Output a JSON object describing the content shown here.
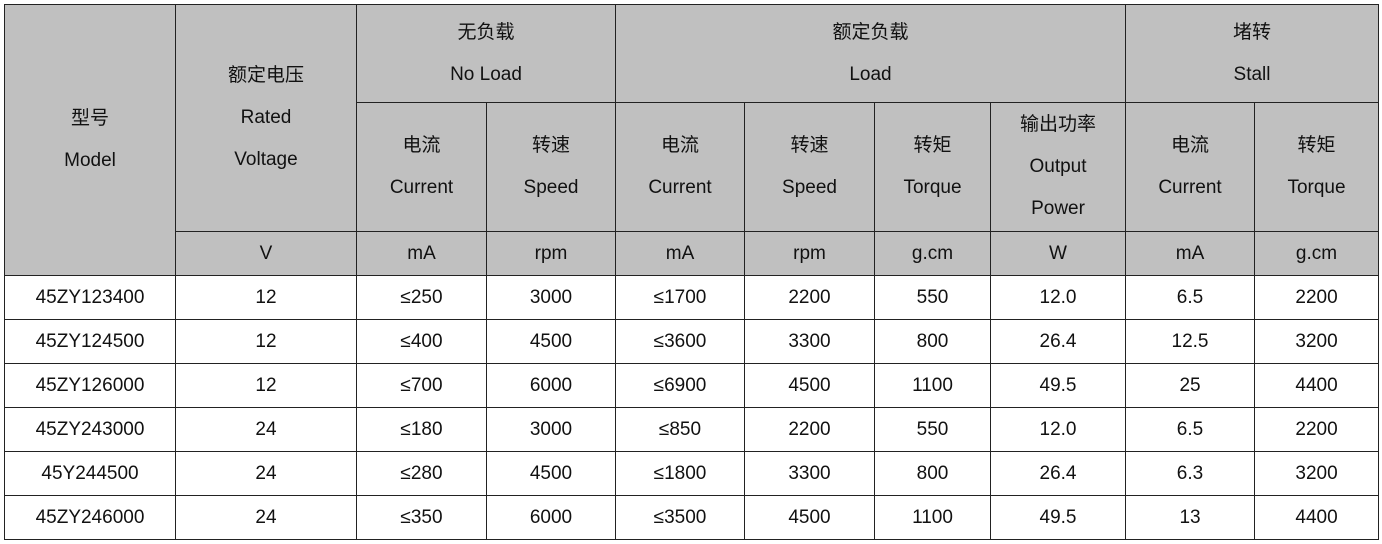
{
  "header": {
    "model": {
      "zh": "型号",
      "en": "Model"
    },
    "voltage": {
      "zh": "额定电压",
      "en1": "Rated",
      "en2": "Voltage",
      "unit": "V"
    },
    "no_load": {
      "zh": "无负载",
      "en": "No Load",
      "cols": [
        {
          "zh": "电流",
          "en": "Current",
          "unit": "mA"
        },
        {
          "zh": "转速",
          "en": "Speed",
          "unit": "rpm"
        }
      ]
    },
    "load": {
      "zh": "额定负载",
      "en": "Load",
      "cols": [
        {
          "zh": "电流",
          "en": "Current",
          "unit": "mA"
        },
        {
          "zh": "转速",
          "en": "Speed",
          "unit": "rpm"
        },
        {
          "zh": "转矩",
          "en": "Torque",
          "unit": "g.cm"
        },
        {
          "zh": "输出功率",
          "en1": "Output",
          "en2": "Power",
          "unit": "W"
        }
      ]
    },
    "stall": {
      "zh": "堵转",
      "en": "Stall",
      "cols": [
        {
          "zh": "电流",
          "en": "Current",
          "unit": "mA"
        },
        {
          "zh": "转矩",
          "en": "Torque",
          "unit": "g.cm"
        }
      ]
    }
  },
  "rows": [
    [
      "45ZY123400",
      "12",
      "≤250",
      "3000",
      "≤1700",
      "2200",
      "550",
      "12.0",
      "6.5",
      "2200"
    ],
    [
      "45ZY124500",
      "12",
      "≤400",
      "4500",
      "≤3600",
      "3300",
      "800",
      "26.4",
      "12.5",
      "3200"
    ],
    [
      "45ZY126000",
      "12",
      "≤700",
      "6000",
      "≤6900",
      "4500",
      "1100",
      "49.5",
      "25",
      "4400"
    ],
    [
      "45ZY243000",
      "24",
      "≤180",
      "3000",
      "≤850",
      "2200",
      "550",
      "12.0",
      "6.5",
      "2200"
    ],
    [
      "45Y244500",
      "24",
      "≤280",
      "4500",
      "≤1800",
      "3300",
      "800",
      "26.4",
      "6.3",
      "3200"
    ],
    [
      "45ZY246000",
      "24",
      "≤350",
      "6000",
      "≤3500",
      "4500",
      "1100",
      "49.5",
      "13",
      "4400"
    ]
  ]
}
